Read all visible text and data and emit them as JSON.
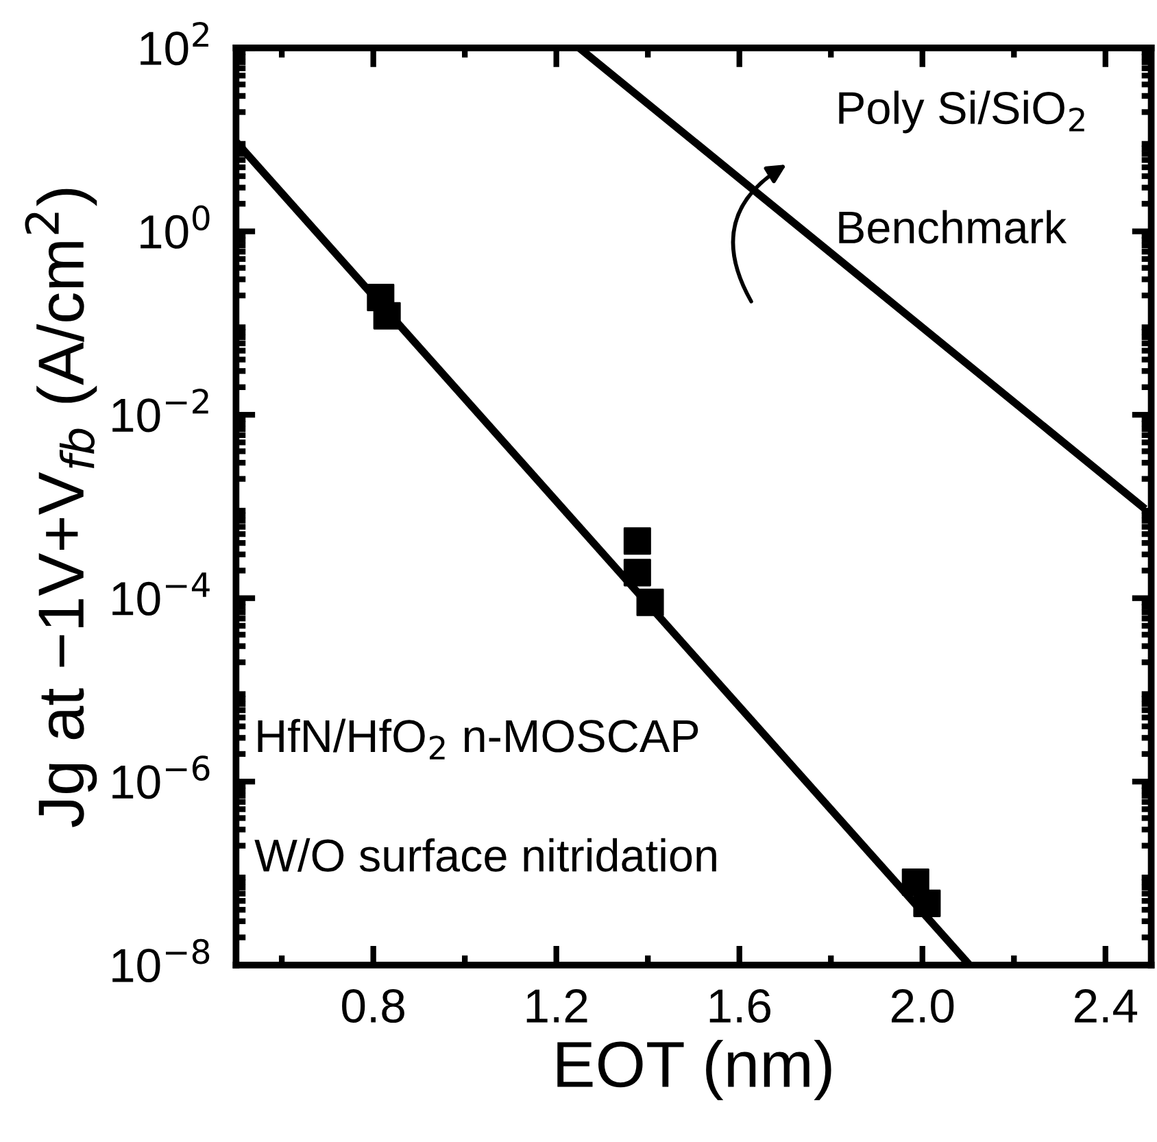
{
  "chart_data": {
    "type": "scatter",
    "xlabel": "EOT (nm)",
    "ylabel": "Jg at −1V+V$_{fb}$ (A/cm$^{2}$)",
    "log": "y",
    "grid": false,
    "marker": "square",
    "xlim": [
      0.5,
      2.5
    ],
    "ylim": [
      1e-08,
      100
    ],
    "xticks": [
      {
        "value": 0.6,
        "label": null
      },
      0.8,
      {
        "value": 1.0,
        "label": null
      },
      1.2,
      {
        "value": 1.4,
        "label": null
      },
      1.6,
      {
        "value": 1.8,
        "label": null
      },
      {
        "value": 2.0,
        "label": "2.0"
      },
      {
        "value": 2.2,
        "label": null
      },
      2.4
    ],
    "yticks": [
      {
        "value": 1e-08,
        "label": "10$^{−8}$"
      },
      {
        "value": 1e-06,
        "label": "10$^{−6}$"
      },
      {
        "value": 0.0001,
        "label": "10$^{−4}$"
      },
      {
        "value": 0.01,
        "label": "10$^{−2}$"
      },
      {
        "value": 1,
        "label": "10$^{0}$"
      },
      {
        "value": 100,
        "label": "10$^{2}$"
      }
    ],
    "series": [
      {
        "color": "#000000",
        "x": [
          0.816,
          0.83,
          1.377,
          1.377,
          1.405,
          1.985,
          2.01
        ],
        "values": [
          0.19,
          0.12,
          0.00042,
          0.00019,
          9e-05,
          8e-08,
          4.7e-08
        ]
      },
      {
        "type": "line",
        "color": "#000000",
        "marker": "none",
        "x": [
          0.5,
          2.103
        ],
        "values": [
          9.5,
          1e-08
        ]
      },
      {
        "type": "line",
        "color": "#000000",
        "marker": "none",
        "x": [
          1.25,
          2.48
        ],
        "values": [
          100,
          0.001
        ]
      }
    ],
    "annotations": [
      "Poly Si/SiO$_{2}$",
      "Benchmark",
      "HfN/HfO$_{2}$ n-MOSCAP",
      "W/O surface nitridation"
    ]
  }
}
